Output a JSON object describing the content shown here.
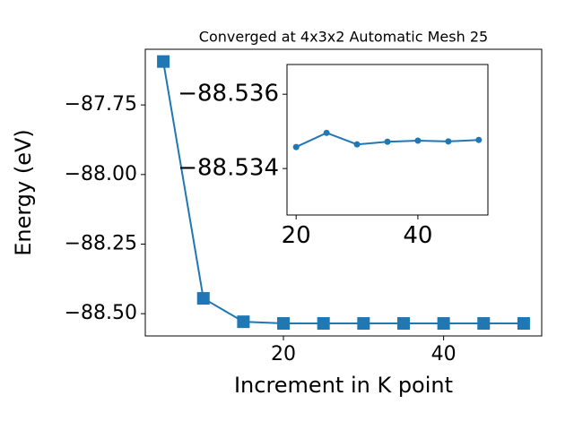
{
  "chart_data": [
    {
      "type": "line",
      "title": "Converged at 4x3x2 Automatic Mesh 25",
      "xlabel": "Increment in K point",
      "ylabel": "Energy (eV)",
      "x": [
        5,
        10,
        15,
        20,
        25,
        30,
        35,
        40,
        45,
        50
      ],
      "values": [
        -87.594,
        -88.445,
        -88.529,
        -88.535,
        -88.535,
        -88.535,
        -88.535,
        -88.535,
        -88.535,
        -88.535
      ],
      "color": "#1f77b4",
      "marker": "square",
      "xlim": [
        2.75,
        52.25
      ],
      "xticks": [
        20,
        40
      ],
      "ylim": [
        -88.58,
        -87.55
      ],
      "yticks": [
        {
          "value": -88.5,
          "label": "−88.50"
        },
        {
          "value": -88.25,
          "label": "−88.25"
        },
        {
          "value": -88.0,
          "label": "−88.00"
        },
        {
          "value": -87.75,
          "label": "−87.75"
        }
      ]
    },
    {
      "type": "line",
      "x": [
        20,
        25,
        30,
        35,
        40,
        45,
        50
      ],
      "values": [
        -88.53458,
        -88.53496,
        -88.53465,
        -88.53472,
        -88.53475,
        -88.53473,
        -88.53477
      ],
      "color": "#1f77b4",
      "marker": "circle",
      "xlim": [
        18.5,
        51.5
      ],
      "xticks": [
        20,
        40
      ],
      "ylim": [
        -88.53275,
        -88.5368
      ],
      "yticks": [
        {
          "value": -88.534,
          "label": "−88.534"
        },
        {
          "value": -88.536,
          "label": "−88.536"
        }
      ]
    }
  ]
}
